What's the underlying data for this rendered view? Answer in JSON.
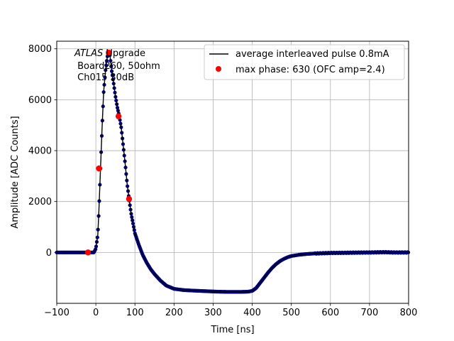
{
  "chart_data": {
    "type": "scatter",
    "title": "",
    "xlabel": "Time [ns]",
    "ylabel": "Amplitude [ADC Counts]",
    "xlim": [
      -100,
      800
    ],
    "ylim": [
      -2000,
      8300
    ],
    "xticks": [
      -100,
      0,
      100,
      200,
      300,
      400,
      500,
      600,
      700,
      800
    ],
    "xtick_labels": [
      "−100",
      "0",
      "100",
      "200",
      "300",
      "400",
      "500",
      "600",
      "700",
      "800"
    ],
    "yticks": [
      0,
      2000,
      4000,
      6000,
      8000
    ],
    "ytick_labels": [
      "0",
      "2000",
      "4000",
      "6000",
      "8000"
    ],
    "grid": true,
    "legend_position": "top-right",
    "annotation": {
      "line1_italic": "ATLAS",
      "line1_rest": " Upgrade",
      "line2": " Board260, 50ohm",
      "line3": " Ch015 30dB"
    },
    "series": [
      {
        "name": "average interleaved pulse 0.8mA",
        "style": "line+dots",
        "color": "#000000",
        "marker_color": "#00008b",
        "x": [
          -100,
          -20,
          -5,
          0,
          5,
          8,
          12,
          16,
          20,
          25,
          30,
          33,
          36,
          40,
          45,
          50,
          55,
          60,
          65,
          70,
          75,
          80,
          85,
          90,
          95,
          100,
          110,
          120,
          130,
          140,
          150,
          165,
          180,
          200,
          225,
          250,
          280,
          310,
          340,
          370,
          390,
          400,
          410,
          420,
          430,
          440,
          450,
          460,
          470,
          480,
          490,
          500,
          520,
          540,
          560,
          600,
          650,
          700,
          740,
          760,
          800
        ],
        "y": [
          0,
          0,
          0,
          150,
          700,
          1700,
          3300,
          4900,
          6300,
          7200,
          7750,
          7850,
          7750,
          7200,
          6700,
          6150,
          5700,
          5350,
          4900,
          4200,
          3500,
          2700,
          2100,
          1550,
          1150,
          750,
          300,
          -100,
          -400,
          -650,
          -850,
          -1100,
          -1300,
          -1430,
          -1480,
          -1500,
          -1520,
          -1540,
          -1550,
          -1550,
          -1540,
          -1510,
          -1400,
          -1200,
          -1000,
          -800,
          -620,
          -470,
          -350,
          -260,
          -190,
          -140,
          -90,
          -60,
          -40,
          -20,
          -10,
          0,
          10,
          0,
          0
        ]
      },
      {
        "name": "max phase: 630 (OFC amp=2.4)",
        "style": "markers",
        "color": "#ff0000",
        "x": [
          -20,
          8,
          33,
          58,
          85
        ],
        "y": [
          0,
          3300,
          7850,
          5350,
          2100
        ]
      }
    ]
  }
}
